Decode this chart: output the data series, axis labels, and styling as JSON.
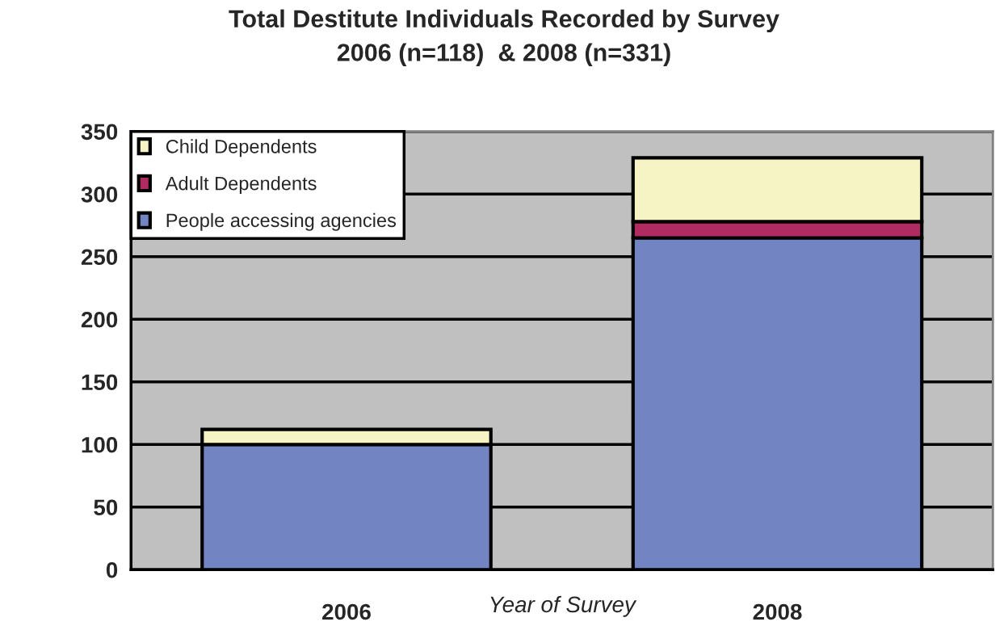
{
  "chart_data": {
    "type": "bar",
    "title": "Total Destitute Individuals Recorded by Survey\n2006 (n=118)  & 2008 (n=331)",
    "xlabel": "Year of Survey",
    "categories": [
      "2006",
      "2008"
    ],
    "stacked": true,
    "series": [
      {
        "name": "People accessing agencies",
        "color": "#7285c2",
        "values": [
          100,
          265
        ]
      },
      {
        "name": "Adult Dependents",
        "color": "#b02b62",
        "values": [
          0,
          13
        ]
      },
      {
        "name": "Child Dependents",
        "color": "#f6f4c4",
        "values": [
          12,
          51
        ]
      }
    ],
    "ylim": [
      0,
      350
    ],
    "yticks": [
      0,
      50,
      100,
      150,
      200,
      250,
      300,
      350
    ],
    "grid": "y",
    "legend": "top left"
  }
}
